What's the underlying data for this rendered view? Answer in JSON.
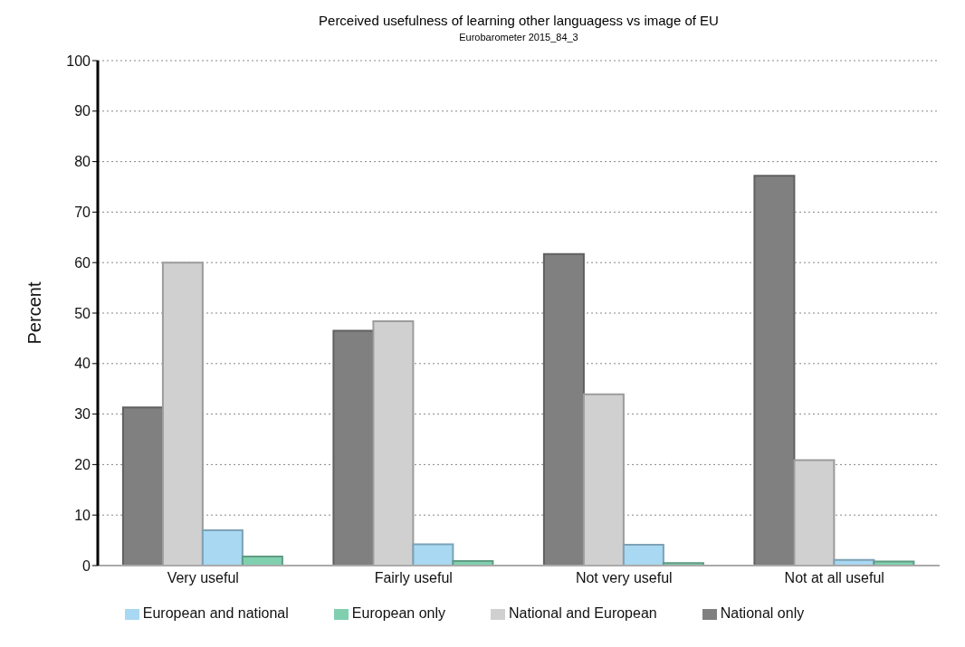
{
  "chart_data": {
    "type": "bar",
    "title": "Perceived usefulness of learning other languagess vs image of EU",
    "subtitle": "Eurobarometer 2015_84_3",
    "ylabel": "Percent",
    "categories": [
      "Very useful",
      "Fairly useful",
      "Not very useful",
      "Not at all useful"
    ],
    "series": [
      {
        "name": "National only",
        "color": "#808080",
        "values": [
          31.3,
          46.5,
          61.7,
          77.2
        ]
      },
      {
        "name": "National and European",
        "color": "#d0d0d0",
        "values": [
          60.0,
          48.4,
          33.9,
          20.9
        ]
      },
      {
        "name": "European and national",
        "color": "#a8d8f2",
        "values": [
          7.0,
          4.2,
          4.1,
          1.1
        ]
      },
      {
        "name": "European only",
        "color": "#80d0b0",
        "values": [
          1.8,
          0.9,
          0.5,
          0.8
        ]
      }
    ],
    "ylim": [
      0,
      100
    ],
    "yticks": [
      0,
      10,
      20,
      30,
      40,
      50,
      60,
      70,
      80,
      90,
      100
    ],
    "grid": "y",
    "legend": "bottom"
  }
}
